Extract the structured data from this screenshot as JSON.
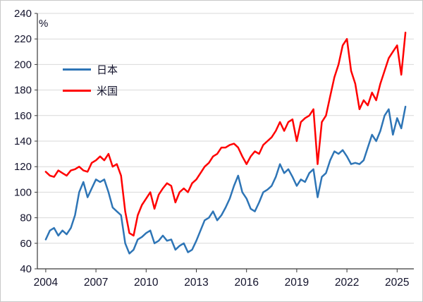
{
  "chart_data": {
    "type": "line",
    "title": "",
    "unit_label": "%",
    "xlabel": "",
    "ylabel": "%",
    "xlim": [
      2003.5,
      2026
    ],
    "ylim": [
      40,
      240
    ],
    "grid": "horizontal",
    "legend_position": "upper-left-inside",
    "x_ticks": [
      2004,
      2007,
      2010,
      2013,
      2016,
      2019,
      2022,
      2025
    ],
    "y_ticks": [
      40,
      60,
      80,
      100,
      120,
      140,
      160,
      180,
      200,
      220,
      240
    ],
    "x": [
      2004,
      2004.25,
      2004.5,
      2004.75,
      2005,
      2005.25,
      2005.5,
      2005.75,
      2006,
      2006.25,
      2006.5,
      2006.75,
      2007,
      2007.25,
      2007.5,
      2007.75,
      2008,
      2008.25,
      2008.5,
      2008.75,
      2009,
      2009.25,
      2009.5,
      2009.75,
      2010,
      2010.25,
      2010.5,
      2010.75,
      2011,
      2011.25,
      2011.5,
      2011.75,
      2012,
      2012.25,
      2012.5,
      2012.75,
      2013,
      2013.25,
      2013.5,
      2013.75,
      2014,
      2014.25,
      2014.5,
      2014.75,
      2015,
      2015.25,
      2015.5,
      2015.75,
      2016,
      2016.25,
      2016.5,
      2016.75,
      2017,
      2017.25,
      2017.5,
      2017.75,
      2018,
      2018.25,
      2018.5,
      2018.75,
      2019,
      2019.25,
      2019.5,
      2019.75,
      2020,
      2020.25,
      2020.5,
      2020.75,
      2021,
      2021.25,
      2021.5,
      2021.75,
      2022,
      2022.25,
      2022.5,
      2022.75,
      2023,
      2023.25,
      2023.5,
      2023.75,
      2024,
      2024.25,
      2024.5,
      2024.75,
      2025,
      2025.25,
      2025.5
    ],
    "series": [
      {
        "name": "日本",
        "color": "#2E75B6",
        "values": [
          63,
          70,
          72,
          66,
          70,
          67,
          72,
          82,
          100,
          108,
          96,
          103,
          110,
          108,
          110,
          100,
          88,
          85,
          82,
          60,
          52,
          55,
          63,
          65,
          68,
          70,
          60,
          62,
          66,
          62,
          63,
          55,
          58,
          60,
          53,
          55,
          62,
          70,
          78,
          80,
          85,
          78,
          82,
          88,
          95,
          105,
          113,
          100,
          95,
          87,
          85,
          92,
          100,
          102,
          105,
          112,
          122,
          115,
          118,
          112,
          105,
          110,
          108,
          115,
          118,
          96,
          112,
          115,
          125,
          132,
          130,
          133,
          128,
          122,
          123,
          122,
          125,
          135,
          145,
          140,
          148,
          160,
          165,
          145,
          158,
          150,
          167
        ]
      },
      {
        "name": "米国",
        "color": "#FF0000",
        "values": [
          116,
          113,
          112,
          117,
          115,
          113,
          117,
          118,
          120,
          117,
          116,
          123,
          125,
          128,
          125,
          130,
          120,
          122,
          113,
          85,
          68,
          66,
          82,
          90,
          95,
          100,
          87,
          98,
          103,
          107,
          105,
          92,
          100,
          103,
          100,
          107,
          110,
          115,
          120,
          123,
          128,
          130,
          135,
          135,
          137,
          138,
          135,
          128,
          122,
          128,
          132,
          130,
          137,
          140,
          143,
          148,
          155,
          148,
          155,
          157,
          140,
          155,
          158,
          160,
          165,
          122,
          155,
          160,
          175,
          190,
          200,
          215,
          220,
          195,
          185,
          165,
          172,
          168,
          178,
          172,
          185,
          195,
          205,
          210,
          215,
          192,
          225
        ]
      }
    ]
  }
}
